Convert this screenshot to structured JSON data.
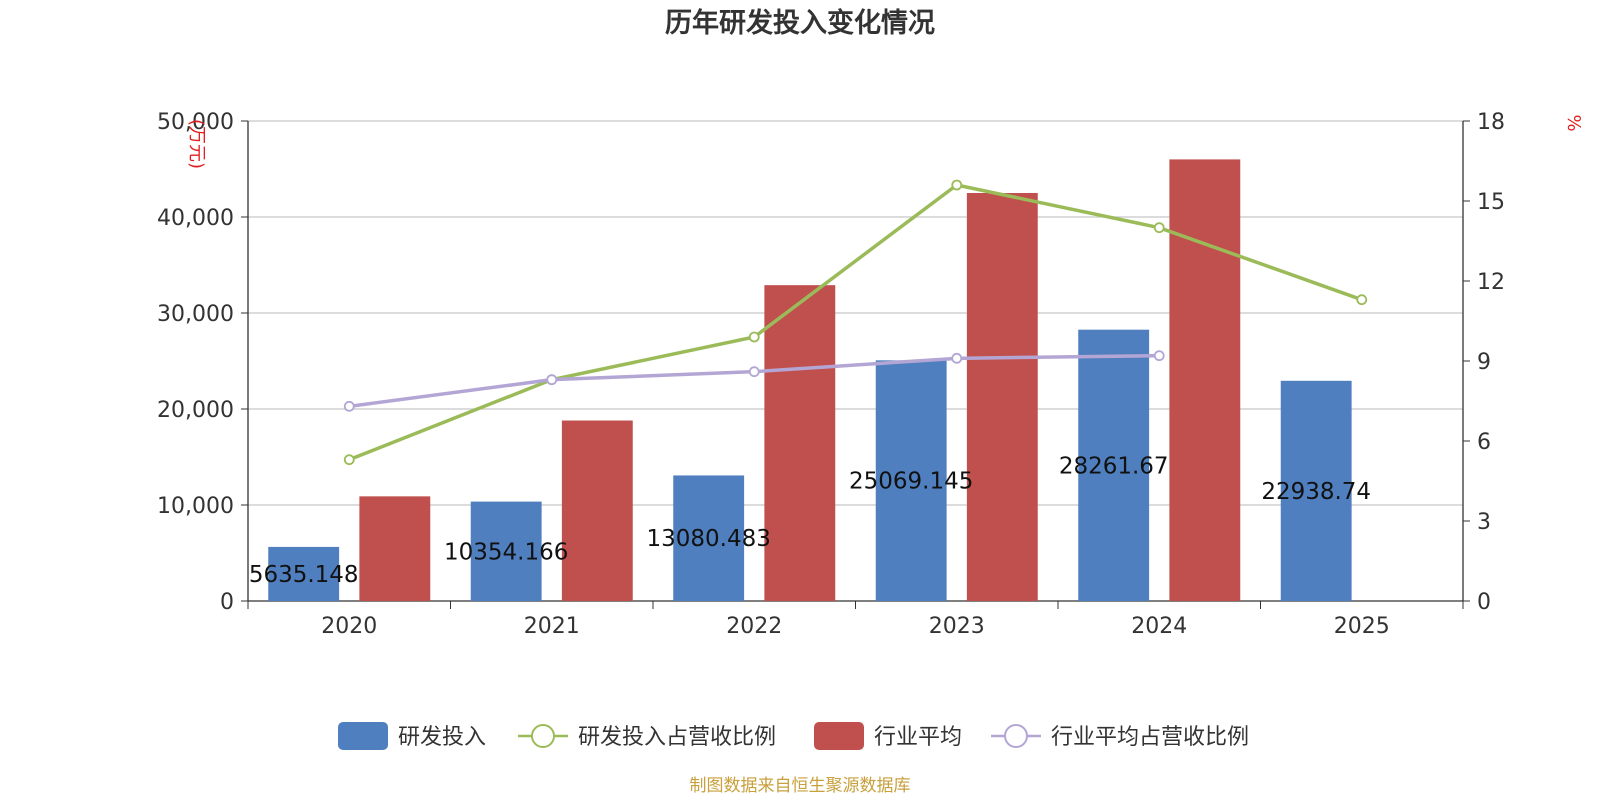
{
  "chart_data": {
    "type": "bar+line",
    "title": "历年研发投入变化情况",
    "categories": [
      "2020",
      "2021",
      "2022",
      "2023",
      "2024",
      "2025"
    ],
    "y_left": {
      "unit": "(万元)",
      "ylim": [
        0,
        50000
      ],
      "ticks": [
        "0",
        "10,000",
        "20,000",
        "30,000",
        "40,000",
        "50,000"
      ]
    },
    "y_right": {
      "unit": "%",
      "ylim": [
        0,
        18
      ],
      "ticks": [
        "0",
        "3",
        "6",
        "9",
        "12",
        "15",
        "18"
      ]
    },
    "series": [
      {
        "name": "研发投入",
        "type": "bar",
        "axis": "left",
        "color": "#4f7fbf",
        "values": [
          5635.148,
          10354.166,
          13080.483,
          25069.145,
          28261.67,
          22938.74
        ],
        "labels": [
          "5635.148",
          "10354.166",
          "13080.483",
          "25069.145",
          "28261.67",
          "22938.74"
        ]
      },
      {
        "name": "研发投入占营收比例",
        "type": "line",
        "axis": "right",
        "color": "#9bbb59",
        "values": [
          5.3,
          8.3,
          9.9,
          15.6,
          14.0,
          11.3
        ]
      },
      {
        "name": "行业平均",
        "type": "bar",
        "axis": "left",
        "color": "#c0504d",
        "values": [
          10900,
          18800,
          32900,
          42500,
          46000,
          null
        ]
      },
      {
        "name": "行业平均占营收比例",
        "type": "line",
        "axis": "right",
        "color": "#b3a6d4",
        "values": [
          7.3,
          8.3,
          8.6,
          9.1,
          9.2,
          null
        ]
      }
    ],
    "legend_position": "bottom",
    "grid": true
  },
  "source": "制图数据来自恒生聚源数据库"
}
